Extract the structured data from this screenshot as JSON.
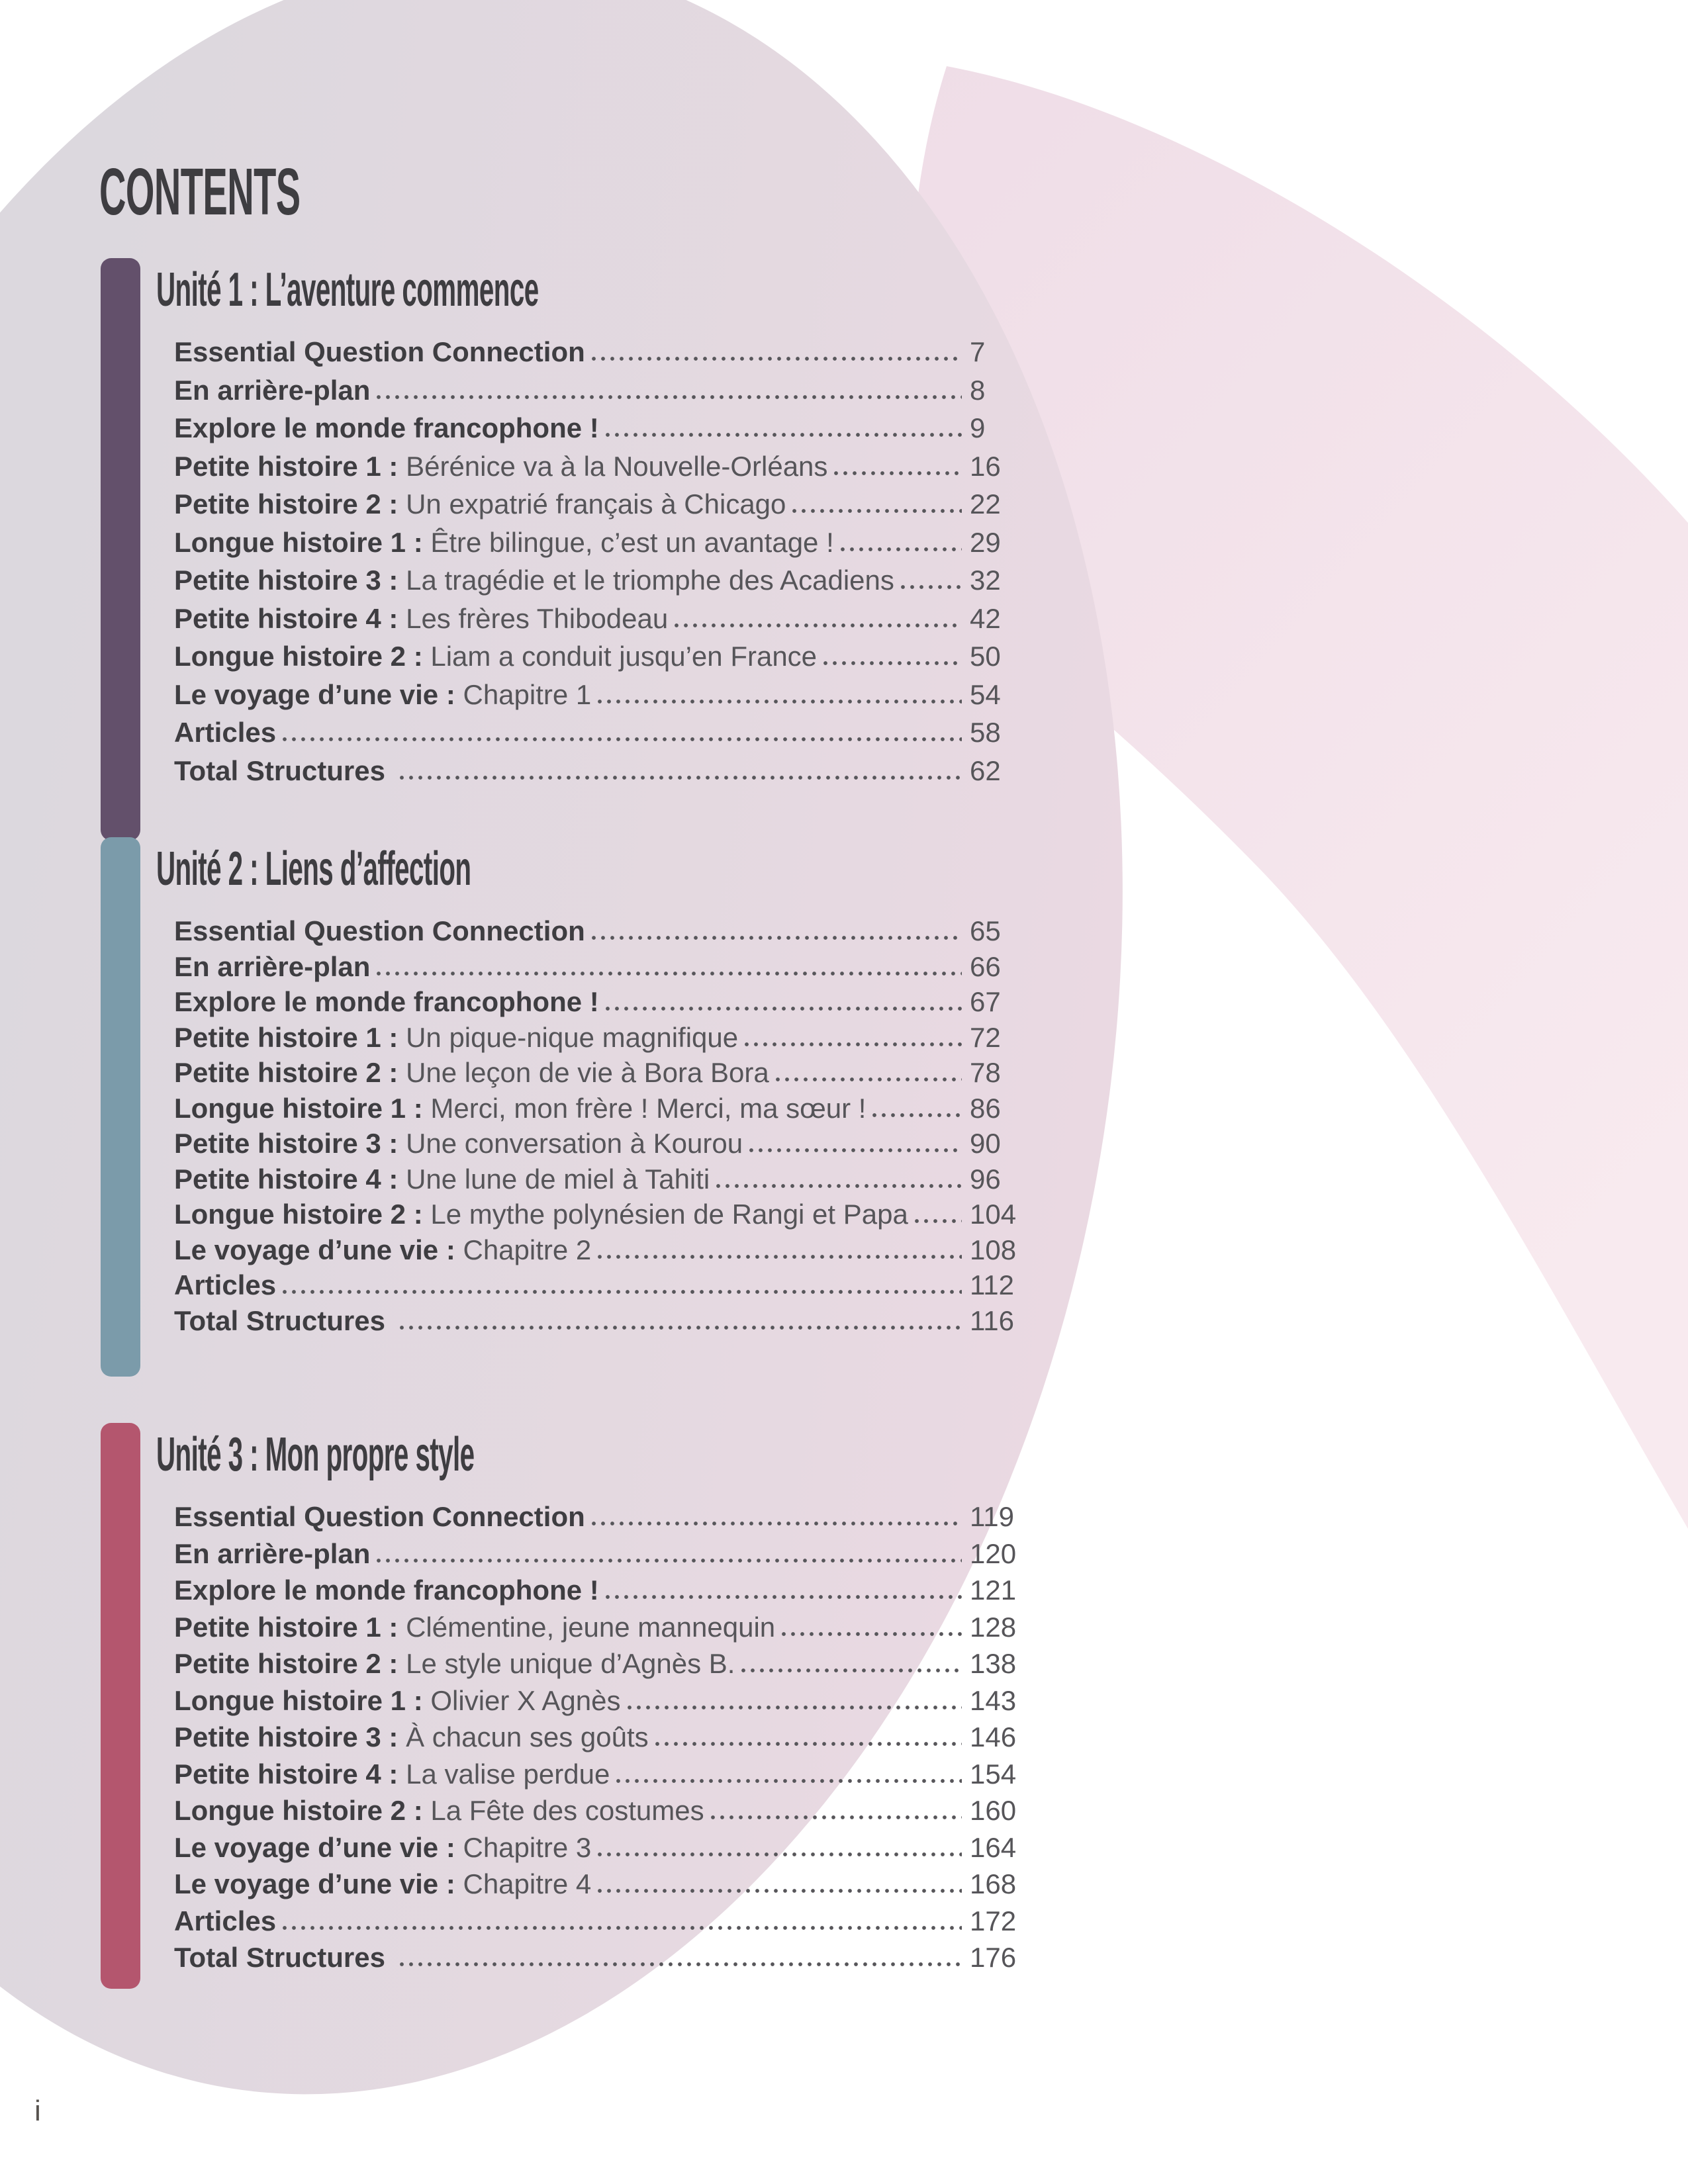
{
  "page_title": "CONTENTS",
  "page_number": "i",
  "colors": {
    "unit1_bar": "#63506B",
    "unit2_bar": "#7B9BAA",
    "unit3_bar": "#B4566E",
    "heading_text": "#3E3D41",
    "body_text": "#565559",
    "background_gray": "#DCD8DE",
    "background_pink": "#F2E0E9"
  },
  "units": [
    {
      "header": "Unité 1 : L’aventure commence",
      "bar_color": "#63506B",
      "entries": [
        {
          "label": "Essential Question Connection",
          "title": "",
          "page": "7"
        },
        {
          "label": "En arrière-plan",
          "title": "",
          "page": "8"
        },
        {
          "label": "Explore le monde francophone !",
          "title": "",
          "page": "9"
        },
        {
          "label": "Petite histoire 1 :",
          "title": "Bérénice va à la Nouvelle-Orléans",
          "page": "16"
        },
        {
          "label": "Petite histoire 2 :",
          "title": "Un expatrié français à Chicago",
          "page": "22"
        },
        {
          "label": "Longue histoire 1 :",
          "title": "Être bilingue, c’est un avantage !",
          "page": "29"
        },
        {
          "label": "Petite histoire 3 :",
          "title": "La tragédie et le triomphe des Acadiens",
          "page": "32"
        },
        {
          "label": "Petite histoire 4 :",
          "title": "Les frères Thibodeau",
          "page": "42"
        },
        {
          "label": "Longue histoire 2 :",
          "title": "Liam a conduit jusqu’en France",
          "page": "50"
        },
        {
          "label": "Le voyage d’une vie :",
          "title": "Chapitre 1",
          "page": "54"
        },
        {
          "label": "Articles",
          "title": "",
          "page": "58"
        },
        {
          "label": "Total Structures ",
          "title": "",
          "page": "62"
        }
      ]
    },
    {
      "header": "Unité 2 : Liens d’affection",
      "bar_color": "#7B9BAA",
      "entries": [
        {
          "label": "Essential Question Connection",
          "title": "",
          "page": "65"
        },
        {
          "label": "En arrière-plan",
          "title": "",
          "page": "66"
        },
        {
          "label": "Explore le monde francophone !",
          "title": "",
          "page": "67"
        },
        {
          "label": "Petite histoire 1 :",
          "title": "Un pique-nique magnifique",
          "page": "72"
        },
        {
          "label": "Petite histoire 2 :",
          "title": "Une leçon de vie à Bora Bora",
          "page": "78"
        },
        {
          "label": "Longue histoire 1 :",
          "title": "Merci, mon frère ! Merci, ma sœur !",
          "page": "86"
        },
        {
          "label": "Petite histoire 3 :",
          "title": "Une conversation à Kourou",
          "page": "90"
        },
        {
          "label": "Petite histoire 4 :",
          "title": "Une lune de miel à Tahiti",
          "page": "96"
        },
        {
          "label": "Longue histoire 2 :",
          "title": "Le mythe polynésien de Rangi et Papa",
          "page": "104"
        },
        {
          "label": "Le voyage d’une vie :",
          "title": "Chapitre 2",
          "page": "108"
        },
        {
          "label": "Articles",
          "title": "",
          "page": "112"
        },
        {
          "label": "Total Structures ",
          "title": "",
          "page": "116"
        }
      ]
    },
    {
      "header": "Unité 3 : Mon propre style",
      "bar_color": "#B4566E",
      "entries": [
        {
          "label": "Essential Question Connection",
          "title": "",
          "page": "119"
        },
        {
          "label": "En arrière-plan",
          "title": "",
          "page": "120"
        },
        {
          "label": "Explore le monde francophone !",
          "title": "",
          "page": "121"
        },
        {
          "label": "Petite histoire 1 :",
          "title": "Clémentine, jeune mannequin",
          "page": "128"
        },
        {
          "label": "Petite histoire 2 :",
          "title": "Le style unique d’Agnès B.",
          "page": "138"
        },
        {
          "label": "Longue histoire 1 :",
          "title": "Olivier X Agnès",
          "page": "143"
        },
        {
          "label": "Petite histoire 3 :",
          "title": "À chacun ses goûts",
          "page": "146"
        },
        {
          "label": "Petite histoire 4 :",
          "title": "La valise perdue",
          "page": "154"
        },
        {
          "label": "Longue histoire 2 :",
          "title": "La Fête des costumes",
          "page": "160"
        },
        {
          "label": "Le voyage d’une vie :",
          "title": "Chapitre 3",
          "page": "164"
        },
        {
          "label": "Le voyage d’une vie :",
          "title": "Chapitre 4",
          "page": "168"
        },
        {
          "label": "Articles",
          "title": "",
          "page": "172"
        },
        {
          "label": "Total Structures ",
          "title": "",
          "page": "176"
        }
      ]
    }
  ]
}
